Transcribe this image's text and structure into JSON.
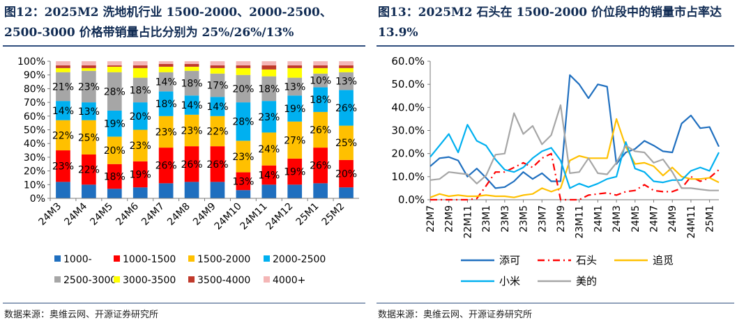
{
  "left": {
    "title": "图12：2025M2 洗地机行业 1500-2000、2000-2500、2500-3000 价格带销量占比分别为 25%/26%/13%",
    "source": "数据来源：奥维云网、开源证券研究所",
    "chart_data": {
      "type": "bar",
      "stacked": true,
      "categories": [
        "24M3",
        "24M4",
        "24M5",
        "24M6",
        "24M7",
        "24M8",
        "24M9",
        "24M10",
        "24M11",
        "24M12",
        "25M1",
        "25M2"
      ],
      "yticks": [
        "0%",
        "10%",
        "20%",
        "30%",
        "40%",
        "50%",
        "60%",
        "70%",
        "80%",
        "90%",
        "100%"
      ],
      "ylim": [
        0,
        100
      ],
      "series": [
        {
          "name": "1000-",
          "color": "#1f6fbf",
          "values": [
            12,
            10,
            7,
            8,
            11,
            12,
            12,
            6,
            10,
            10,
            11,
            8
          ]
        },
        {
          "name": "1000-1500",
          "color": "#ff0000",
          "values": [
            23,
            22,
            18,
            19,
            26,
            26,
            26,
            13,
            14,
            19,
            26,
            20
          ]
        },
        {
          "name": "1500-2000",
          "color": "#ffc000",
          "values": [
            22,
            25,
            20,
            23,
            23,
            23,
            22,
            23,
            24,
            27,
            26,
            25
          ]
        },
        {
          "name": "2000-2500",
          "color": "#00b0f0",
          "values": [
            14,
            13,
            19,
            20,
            18,
            14,
            14,
            28,
            23,
            19,
            18,
            26
          ]
        },
        {
          "name": "2500-3000",
          "color": "#a6a6a6",
          "values": [
            21,
            23,
            28,
            18,
            14,
            18,
            17,
            20,
            18,
            13,
            10,
            13
          ]
        },
        {
          "name": "3000-3500",
          "color": "#ffff00",
          "values": [
            3,
            2,
            4,
            7,
            4,
            3,
            4,
            5,
            5,
            7,
            4,
            3
          ]
        },
        {
          "name": "3500-4000",
          "color": "#c0392b",
          "values": [
            2,
            2,
            1,
            2,
            2,
            2,
            2,
            2,
            3,
            2,
            2,
            2
          ]
        },
        {
          "name": "4000+",
          "color": "#f4b6b6",
          "values": [
            3,
            3,
            3,
            3,
            2,
            2,
            3,
            3,
            3,
            3,
            3,
            3
          ]
        }
      ],
      "labels": {
        "1000-1500": [
          "23%",
          "22%",
          "18%",
          "19%",
          "26%",
          "26%",
          "26%",
          "13%",
          "14%",
          "19%",
          "26%",
          "20%"
        ],
        "1500-2000": [
          "22%",
          "25%",
          "20%",
          "23%",
          "23%",
          "23%",
          "22%",
          "23%",
          "24%",
          "27%",
          "26%",
          "25%"
        ],
        "2000-2500": [
          "14%",
          "13%",
          "19%",
          "20%",
          "18%",
          "14%",
          "14%",
          "28%",
          "23%",
          "19%",
          "18%",
          "26%"
        ],
        "2500-3000": [
          "21%",
          "23%",
          "28%",
          "18%",
          "14%",
          "18%",
          "17%",
          "20%",
          "18%",
          "13%",
          "10%",
          "13%"
        ]
      }
    }
  },
  "right": {
    "title": "图13：2025M2 石头在 1500-2000 价位段中的销量市占率达 13.9%",
    "source": "数据来源：奥维云网、开源证券研究所",
    "chart_data": {
      "type": "line",
      "x": [
        "22M7",
        "22M8",
        "22M9",
        "22M10",
        "22M11",
        "22M12",
        "23M1",
        "23M2",
        "23M3",
        "23M4",
        "23M5",
        "23M6",
        "23M7",
        "23M8",
        "23M9",
        "23M10",
        "23M11",
        "23M12",
        "24M1",
        "24M2",
        "24M3",
        "24M4",
        "24M5",
        "24M6",
        "24M7",
        "24M8",
        "24M9",
        "24M10",
        "24M11",
        "24M12",
        "25M1",
        "25M2"
      ],
      "xtick_labels": [
        "22M7",
        "22M9",
        "22M11",
        "23M1",
        "23M3",
        "23M5",
        "23M7",
        "23M9",
        "23M11",
        "24M1",
        "24M3",
        "24M5",
        "24M7",
        "24M9",
        "24M11",
        "25M1"
      ],
      "yticks": [
        "0.0%",
        "10.0%",
        "20.0%",
        "30.0%",
        "40.0%",
        "50.0%",
        "60.0%"
      ],
      "ylim": [
        0,
        60
      ],
      "series": [
        {
          "name": "添可",
          "color": "#1f6fbf",
          "dash": "solid",
          "values": [
            14.5,
            18,
            18.5,
            17,
            10,
            13.5,
            9.5,
            5,
            5.5,
            8,
            12,
            9,
            11.5,
            8,
            8,
            54,
            50,
            44,
            50,
            49,
            15.5,
            20.5,
            22,
            25.5,
            23.5,
            21,
            20.5,
            33,
            36.5,
            31,
            31.5,
            23
          ]
        },
        {
          "name": "石头",
          "color": "#ff0000",
          "dash": "dashdot",
          "values": [
            0,
            0,
            0,
            0,
            0,
            0.5,
            6,
            12,
            12,
            14,
            16,
            14,
            18,
            20,
            0,
            0,
            0,
            2,
            2.5,
            3,
            2,
            3.5,
            4,
            6.5,
            4,
            3.5,
            3.5,
            5,
            10,
            8,
            9.5,
            13
          ]
        },
        {
          "name": "追觅",
          "color": "#ffc000",
          "dash": "solid",
          "values": [
            1,
            2.5,
            1.5,
            2,
            1.5,
            1.5,
            2,
            1.5,
            1.5,
            1,
            2,
            2.5,
            5,
            3.5,
            5,
            17,
            19,
            18,
            18,
            18,
            35,
            23,
            15.5,
            16,
            14.5,
            10.5,
            14,
            10,
            9,
            9,
            9.5,
            7.5
          ]
        },
        {
          "name": "小米",
          "color": "#00b0f0",
          "dash": "solid",
          "values": [
            18.5,
            23.5,
            28.5,
            20.5,
            32.5,
            25.5,
            23.5,
            17.5,
            13,
            12,
            14,
            18,
            21,
            22.5,
            17,
            5,
            7,
            5.5,
            7,
            9,
            10,
            25,
            13.5,
            12,
            8,
            7.5,
            8.5,
            8.5,
            12.5,
            14,
            12.5,
            20.5
          ]
        },
        {
          "name": "美的",
          "color": "#a6a6a6",
          "dash": "solid",
          "values": [
            8.5,
            9,
            12,
            11.5,
            11,
            7,
            10.5,
            19.5,
            20,
            37.5,
            28.5,
            32,
            24,
            28,
            41,
            11.5,
            12,
            18,
            11.5,
            11,
            16,
            23.5,
            21,
            20.5,
            16,
            17.5,
            12,
            5,
            5,
            4.5,
            4,
            4
          ]
        }
      ]
    }
  }
}
